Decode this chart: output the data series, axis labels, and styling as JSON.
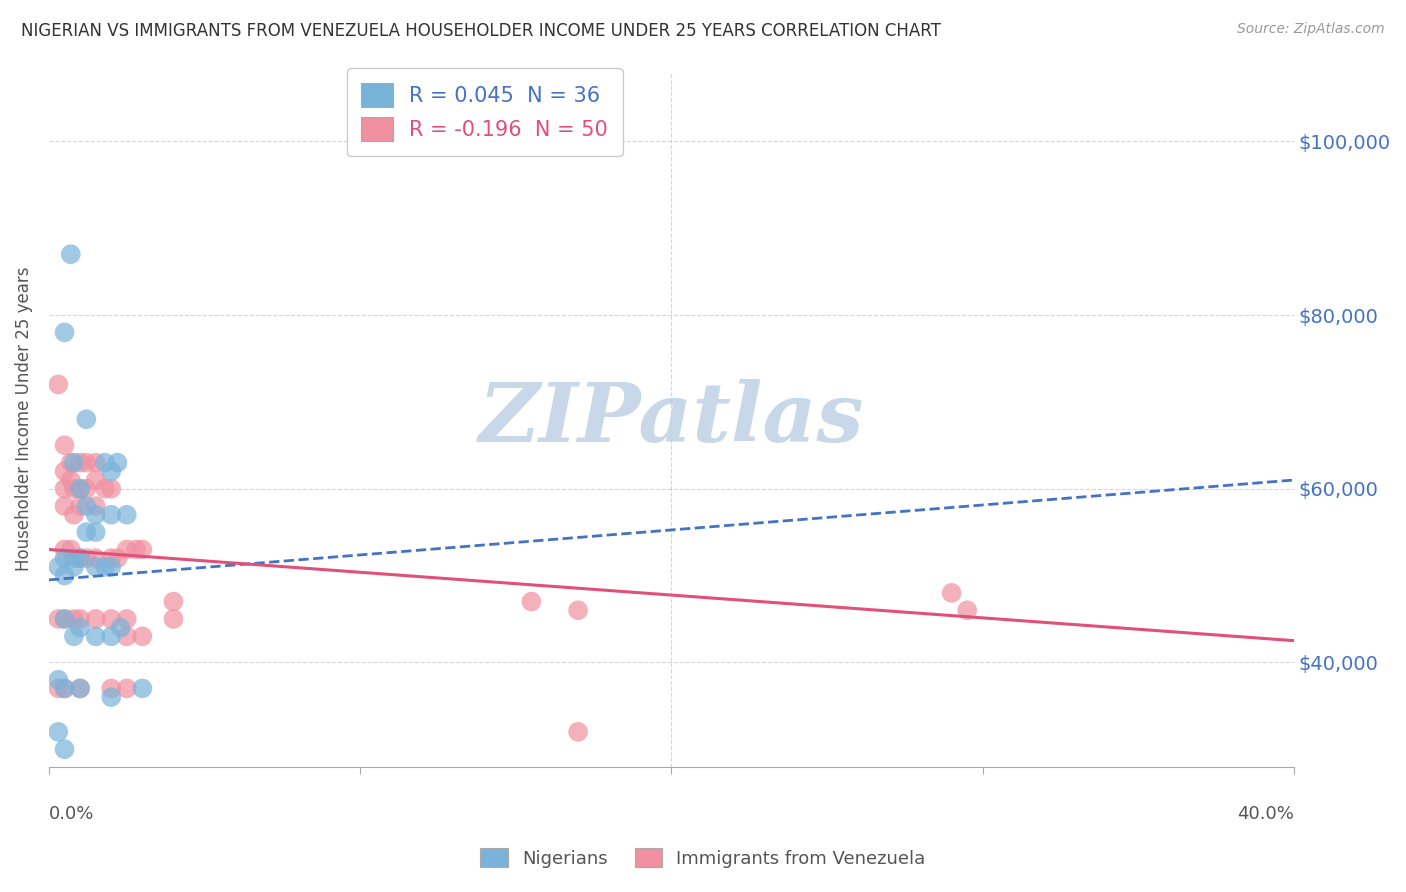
{
  "title": "NIGERIAN VS IMMIGRANTS FROM VENEZUELA HOUSEHOLDER INCOME UNDER 25 YEARS CORRELATION CHART",
  "source": "Source: ZipAtlas.com",
  "ylabel": "Householder Income Under 25 years",
  "watermark": "ZIPatlas",
  "legend_entries": [
    {
      "label": "R = 0.045  N = 36",
      "color": "#aec6e8"
    },
    {
      "label": "R = -0.196  N = 50",
      "color": "#f4b8c1"
    }
  ],
  "legend_labels": [
    "Nigerians",
    "Immigrants from Venezuela"
  ],
  "y_ticks": [
    40000,
    60000,
    80000,
    100000
  ],
  "y_tick_labels": [
    "$40,000",
    "$60,000",
    "$80,000",
    "$100,000"
  ],
  "xlim": [
    0.0,
    0.4
  ],
  "ylim": [
    28000,
    108000
  ],
  "nigerians": [
    [
      0.007,
      87000
    ],
    [
      0.005,
      78000
    ],
    [
      0.012,
      68000
    ],
    [
      0.008,
      63000
    ],
    [
      0.01,
      60000
    ],
    [
      0.012,
      58000
    ],
    [
      0.015,
      57000
    ],
    [
      0.018,
      63000
    ],
    [
      0.02,
      62000
    ],
    [
      0.022,
      63000
    ],
    [
      0.012,
      55000
    ],
    [
      0.015,
      55000
    ],
    [
      0.02,
      57000
    ],
    [
      0.025,
      57000
    ],
    [
      0.005,
      52000
    ],
    [
      0.008,
      52000
    ],
    [
      0.003,
      51000
    ],
    [
      0.005,
      50000
    ],
    [
      0.01,
      52000
    ],
    [
      0.015,
      51000
    ],
    [
      0.018,
      51000
    ],
    [
      0.02,
      51000
    ],
    [
      0.005,
      45000
    ],
    [
      0.008,
      43000
    ],
    [
      0.01,
      44000
    ],
    [
      0.015,
      43000
    ],
    [
      0.02,
      43000
    ],
    [
      0.023,
      44000
    ],
    [
      0.003,
      38000
    ],
    [
      0.005,
      37000
    ],
    [
      0.01,
      37000
    ],
    [
      0.02,
      36000
    ],
    [
      0.03,
      37000
    ],
    [
      0.003,
      32000
    ],
    [
      0.005,
      30000
    ],
    [
      0.008,
      51000
    ]
  ],
  "venezuela": [
    [
      0.003,
      72000
    ],
    [
      0.005,
      65000
    ],
    [
      0.005,
      62000
    ],
    [
      0.005,
      60000
    ],
    [
      0.005,
      58000
    ],
    [
      0.007,
      63000
    ],
    [
      0.007,
      61000
    ],
    [
      0.008,
      60000
    ],
    [
      0.008,
      57000
    ],
    [
      0.01,
      63000
    ],
    [
      0.01,
      60000
    ],
    [
      0.01,
      58000
    ],
    [
      0.012,
      63000
    ],
    [
      0.012,
      60000
    ],
    [
      0.015,
      63000
    ],
    [
      0.015,
      61000
    ],
    [
      0.015,
      58000
    ],
    [
      0.018,
      60000
    ],
    [
      0.02,
      60000
    ],
    [
      0.005,
      53000
    ],
    [
      0.007,
      53000
    ],
    [
      0.01,
      52000
    ],
    [
      0.012,
      52000
    ],
    [
      0.015,
      52000
    ],
    [
      0.02,
      52000
    ],
    [
      0.022,
      52000
    ],
    [
      0.025,
      53000
    ],
    [
      0.028,
      53000
    ],
    [
      0.03,
      53000
    ],
    [
      0.003,
      45000
    ],
    [
      0.005,
      45000
    ],
    [
      0.008,
      45000
    ],
    [
      0.01,
      45000
    ],
    [
      0.015,
      45000
    ],
    [
      0.02,
      45000
    ],
    [
      0.025,
      45000
    ],
    [
      0.025,
      43000
    ],
    [
      0.03,
      43000
    ],
    [
      0.04,
      47000
    ],
    [
      0.04,
      45000
    ],
    [
      0.29,
      48000
    ],
    [
      0.295,
      46000
    ],
    [
      0.003,
      37000
    ],
    [
      0.005,
      37000
    ],
    [
      0.01,
      37000
    ],
    [
      0.02,
      37000
    ],
    [
      0.025,
      37000
    ],
    [
      0.155,
      47000
    ],
    [
      0.17,
      46000
    ],
    [
      0.17,
      32000
    ]
  ],
  "nigerian_color": "#7ab3d9",
  "venezuela_color": "#f090a0",
  "nigerian_line_color": "#4472c4",
  "venezuela_line_color": "#e0507a",
  "nig_trend_x": [
    0.0,
    0.4
  ],
  "nig_trend_y": [
    49500,
    61000
  ],
  "ven_trend_x": [
    0.0,
    0.4
  ],
  "ven_trend_y": [
    53000,
    42500
  ],
  "background_color": "#ffffff",
  "grid_color": "#cccccc",
  "title_color": "#333333",
  "axis_label_color": "#4472c4",
  "watermark_color": "#c8d8e8"
}
